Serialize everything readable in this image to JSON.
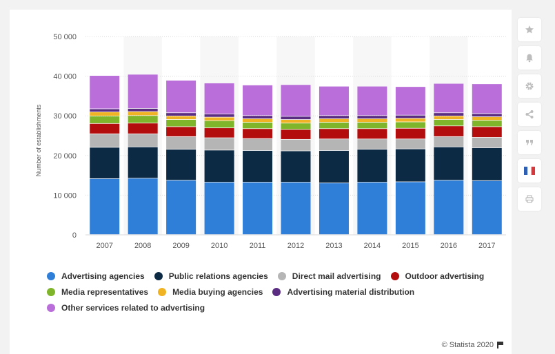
{
  "chart_data": {
    "type": "bar",
    "stacked": true,
    "categories": [
      "2007",
      "2008",
      "2009",
      "2010",
      "2011",
      "2012",
      "2013",
      "2014",
      "2015",
      "2016",
      "2017"
    ],
    "ylabel": "Number of establishments",
    "xlabel": "",
    "ylim": [
      0,
      50000
    ],
    "yticks": [
      0,
      10000,
      20000,
      30000,
      40000,
      50000
    ],
    "ytick_labels": [
      "0",
      "10 000",
      "20 000",
      "30 000",
      "40 000",
      "50 000"
    ],
    "grid": true,
    "legend_position": "bottom",
    "series": [
      {
        "name": "Advertising agencies",
        "color": "#2f7ed8",
        "values": [
          14100,
          14200,
          13700,
          13200,
          13200,
          13200,
          13000,
          13200,
          13300,
          13700,
          13600
        ]
      },
      {
        "name": "Public relations agencies",
        "color": "#0d2a45",
        "values": [
          7900,
          7900,
          7800,
          8100,
          8000,
          7900,
          8200,
          8300,
          8300,
          8400,
          8300
        ]
      },
      {
        "name": "Direct mail advertising",
        "color": "#b5b5b5",
        "values": [
          3400,
          3300,
          3200,
          3100,
          3000,
          2900,
          2900,
          2600,
          2500,
          2600,
          2600
        ]
      },
      {
        "name": "Outdoor advertising",
        "color": "#b30d0d",
        "values": [
          2600,
          2700,
          2500,
          2500,
          2500,
          2500,
          2600,
          2600,
          2700,
          2700,
          2700
        ]
      },
      {
        "name": "Media representatives",
        "color": "#7fb52b",
        "values": [
          1900,
          1900,
          1800,
          1800,
          1600,
          1600,
          1600,
          1600,
          1600,
          1600,
          1600
        ]
      },
      {
        "name": "Media buying agencies",
        "color": "#f0b323",
        "values": [
          1000,
          1000,
          900,
          900,
          900,
          900,
          900,
          900,
          900,
          900,
          900
        ]
      },
      {
        "name": "Advertising material distribution",
        "color": "#5a2d82",
        "values": [
          800,
          800,
          800,
          800,
          800,
          800,
          800,
          800,
          800,
          800,
          800
        ]
      },
      {
        "name": "Other services related to advertising",
        "color": "#b96ed9",
        "values": [
          8400,
          8600,
          8200,
          7800,
          7700,
          8000,
          7400,
          7400,
          7200,
          7400,
          7500
        ]
      }
    ]
  },
  "legend_rows": [
    [
      0,
      1,
      2,
      3
    ],
    [
      4,
      5,
      6
    ],
    [
      7
    ]
  ],
  "footer": {
    "credit": "© Statista 2020"
  },
  "toolbar": {
    "icons": [
      "star-icon",
      "bell-icon",
      "gear-icon",
      "share-icon",
      "quote-icon",
      "french-flag-icon",
      "print-icon"
    ]
  },
  "colors": {
    "flag_blue": "#2f5fb3",
    "flag_red": "#d9383a",
    "icon_gray": "#bdbdbd",
    "band": "#f7f7f7",
    "grid": "#d9d9d9"
  }
}
